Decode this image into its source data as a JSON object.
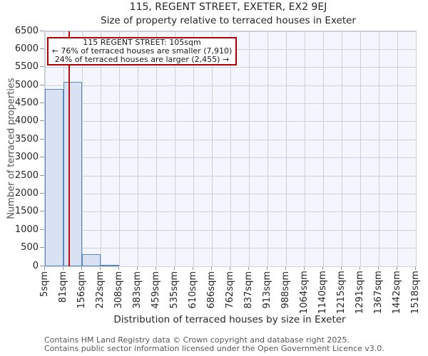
{
  "header": {
    "title": "115, REGENT STREET, EXETER, EX2 9EJ",
    "subtitle": "Size of property relative to terraced houses in Exeter"
  },
  "axes": {
    "y_label": "Number of terraced properties",
    "x_label": "Distribution of terraced houses by size in Exeter"
  },
  "annotation": {
    "line1": "115 REGENT STREET: 105sqm",
    "line2": "← 76% of terraced houses are smaller (7,910)",
    "line3": "24% of terraced houses are larger (2,455) →"
  },
  "footer": {
    "line1": "Contains HM Land Registry data © Crown copyright and database right 2025.",
    "line2": "Contains public sector information licensed under the Open Government Licence v3.0."
  },
  "chart_data": {
    "type": "bar",
    "title": "115, REGENT STREET, EXETER, EX2 9EJ",
    "subtitle": "Size of property relative to terraced houses in Exeter",
    "xlabel": "Distribution of terraced houses by size in Exeter",
    "ylabel": "Number of terraced properties",
    "bin_edges_sqm": [
      5,
      81,
      156,
      232,
      308,
      383,
      459,
      535,
      610,
      686,
      762,
      837,
      913,
      988,
      1064,
      1140,
      1215,
      1291,
      1367,
      1442,
      1518
    ],
    "bin_labels": [
      "5sqm",
      "81sqm",
      "156sqm",
      "232sqm",
      "308sqm",
      "383sqm",
      "459sqm",
      "535sqm",
      "610sqm",
      "686sqm",
      "762sqm",
      "837sqm",
      "913sqm",
      "988sqm",
      "1064sqm",
      "1140sqm",
      "1215sqm",
      "1291sqm",
      "1367sqm",
      "1442sqm",
      "1518sqm"
    ],
    "values": [
      4900,
      5100,
      330,
      35,
      0,
      0,
      0,
      0,
      0,
      0,
      0,
      0,
      0,
      0,
      0,
      0,
      0,
      0,
      0,
      0
    ],
    "ylim": [
      0,
      6500
    ],
    "ytick_step": 500,
    "marker_value_sqm": 105,
    "marker_label": "115 REGENT STREET: 105sqm",
    "pct_smaller": 76,
    "count_smaller": "7,910",
    "pct_larger": 24,
    "count_larger": "2,455",
    "grid": true,
    "legend": "none",
    "colors": {
      "bar_fill": "#d9e2f2",
      "bar_edge": "#5b87c2",
      "marker_line": "#bb0e0e",
      "annotation_border": "#b20000",
      "plot_background": "#f3f6fc",
      "grid_line": "#ced1d9"
    }
  }
}
